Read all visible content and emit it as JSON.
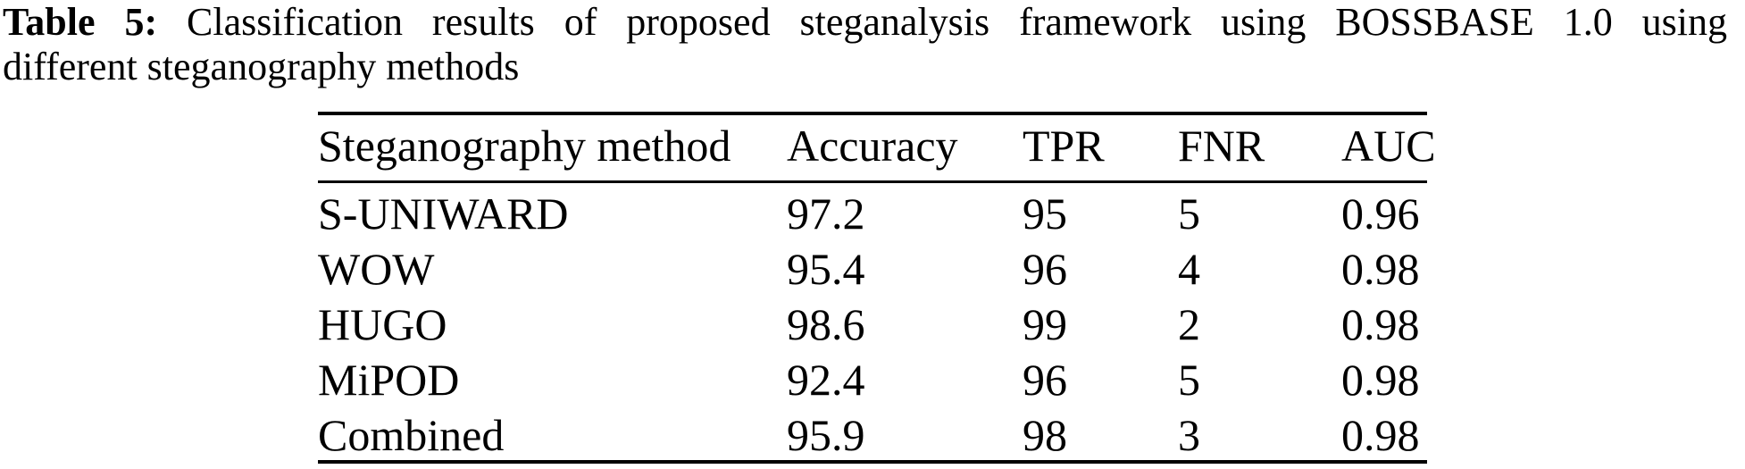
{
  "caption": {
    "label": "Table 5:",
    "line1_rest": "Classification results of proposed steganalysis framework using BOSSBASE 1.0 using",
    "line2": "different steganography methods"
  },
  "table": {
    "columns": [
      "Steganography method",
      "Accuracy",
      "TPR",
      "FNR",
      "AUC"
    ],
    "rows": [
      {
        "method": "S-UNIWARD",
        "accuracy": "97.2",
        "tpr": "95",
        "fnr": "5",
        "auc": "0.96"
      },
      {
        "method": "WOW",
        "accuracy": "95.4",
        "tpr": "96",
        "fnr": "4",
        "auc": "0.98"
      },
      {
        "method": "HUGO",
        "accuracy": "98.6",
        "tpr": "99",
        "fnr": "2",
        "auc": "0.98"
      },
      {
        "method": "MiPOD",
        "accuracy": "92.4",
        "tpr": "96",
        "fnr": "5",
        "auc": "0.98"
      },
      {
        "method": "Combined",
        "accuracy": "95.9",
        "tpr": "98",
        "fnr": "3",
        "auc": "0.98"
      }
    ]
  },
  "chart_data": {
    "type": "table",
    "title": "Table 5: Classification results of proposed steganalysis framework using BOSSBASE 1.0 using different steganography methods",
    "columns": [
      "Steganography method",
      "Accuracy",
      "TPR",
      "FNR",
      "AUC"
    ],
    "rows": [
      [
        "S-UNIWARD",
        97.2,
        95,
        5,
        0.96
      ],
      [
        "WOW",
        95.4,
        96,
        4,
        0.98
      ],
      [
        "HUGO",
        98.6,
        99,
        2,
        0.98
      ],
      [
        "MiPOD",
        92.4,
        96,
        5,
        0.98
      ],
      [
        "Combined",
        95.9,
        98,
        3,
        0.98
      ]
    ]
  },
  "colors": {
    "text": "#000000",
    "background": "#ffffff",
    "rule": "#000000"
  }
}
